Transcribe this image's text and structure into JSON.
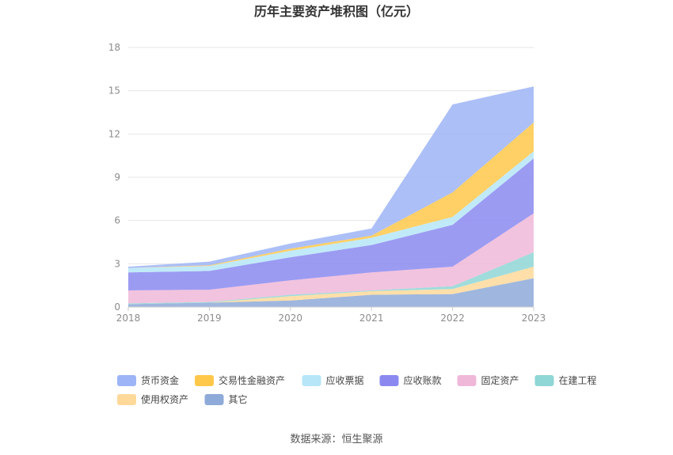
{
  "chart_data": {
    "type": "area",
    "stacked": true,
    "title": "历年主要资产堆积图（亿元）",
    "x": [
      "2018",
      "2019",
      "2020",
      "2021",
      "2022",
      "2023"
    ],
    "ylim": [
      0,
      18
    ],
    "yticks": [
      "0",
      "3",
      "6",
      "9",
      "12",
      "15",
      "18"
    ],
    "grid": true,
    "legend_position": "bottom",
    "series": [
      {
        "name": "其它",
        "color": "#8eaad8",
        "values": [
          0.2,
          0.3,
          0.45,
          0.85,
          0.9,
          2.0
        ]
      },
      {
        "name": "使用权资产",
        "color": "#ffd99a",
        "values": [
          0.0,
          0.0,
          0.3,
          0.25,
          0.35,
          0.8
        ]
      },
      {
        "name": "在建工程",
        "color": "#8fd6d6",
        "values": [
          0.05,
          0.05,
          0.1,
          0.05,
          0.2,
          1.0
        ]
      },
      {
        "name": "固定资产",
        "color": "#f0b8d8",
        "values": [
          0.9,
          0.85,
          1.0,
          1.25,
          1.35,
          2.7
        ]
      },
      {
        "name": "应收账款",
        "color": "#8b89f0",
        "values": [
          1.25,
          1.3,
          1.6,
          1.9,
          2.9,
          3.8
        ]
      },
      {
        "name": "应收票据",
        "color": "#b6e6f8",
        "values": [
          0.3,
          0.35,
          0.45,
          0.5,
          0.55,
          0.5
        ]
      },
      {
        "name": "交易性金融资产",
        "color": "#ffc84a",
        "values": [
          0.0,
          0.05,
          0.15,
          0.15,
          1.7,
          2.0
        ]
      },
      {
        "name": "货币资金",
        "color": "#9db4f6",
        "values": [
          0.1,
          0.25,
          0.35,
          0.5,
          6.1,
          2.5
        ]
      }
    ],
    "legend_order": [
      "货币资金",
      "交易性金融资产",
      "应收票据",
      "应收账款",
      "固定资产",
      "在建工程",
      "使用权资产",
      "其它"
    ]
  },
  "source": "数据来源：恒生聚源"
}
